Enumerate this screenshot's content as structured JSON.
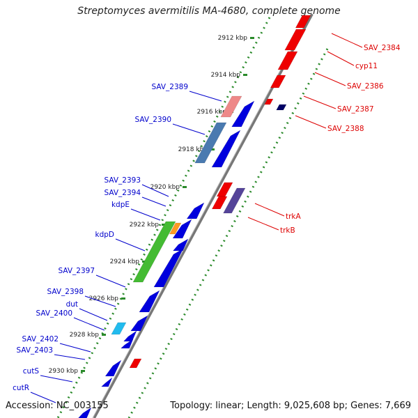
{
  "title": "Streptomyces avermitilis MA-4680, complete genome",
  "accession_label": "Accession: NC_003155",
  "topology_label": "Topology: linear; Length: 9,025,608 bp; Genes: 7,669",
  "ticks": [
    "2912 kbp",
    "2914 kbp",
    "2916 kbp",
    "2918 kbp",
    "2920 kbp",
    "2922 kbp",
    "2924 kbp",
    "2926 kbp",
    "2928 kbp",
    "2930 kbp"
  ],
  "left_labels": [
    "SAV_2389",
    "SAV_2390",
    "SAV_2393",
    "SAV_2394",
    "kdpE",
    "kdpD",
    "SAV_2397",
    "SAV_2398",
    "dut",
    "SAV_2400",
    "SAV_2402",
    "SAV_2403",
    "cutS",
    "cutR"
  ],
  "right_labels": [
    "SAV_2384",
    "cyp11",
    "SAV_2386",
    "SAV_2387",
    "SAV_2388",
    "trkA",
    "trkB"
  ],
  "colors": {
    "forward_gene": "#0000dd",
    "reverse_gene": "#ee0000",
    "label_forward": "#0000cc",
    "label_reverse": "#dd0000",
    "backbone": "#777777",
    "tick_dot": "#2a8a2a",
    "highlight_pink": "#ee8888",
    "highlight_steel": "#4a7ab0",
    "highlight_green": "#44bb33",
    "highlight_orange": "#ff9922",
    "highlight_cyan": "#22bbee",
    "highlight_purple": "#554499",
    "navy": "#000066"
  }
}
